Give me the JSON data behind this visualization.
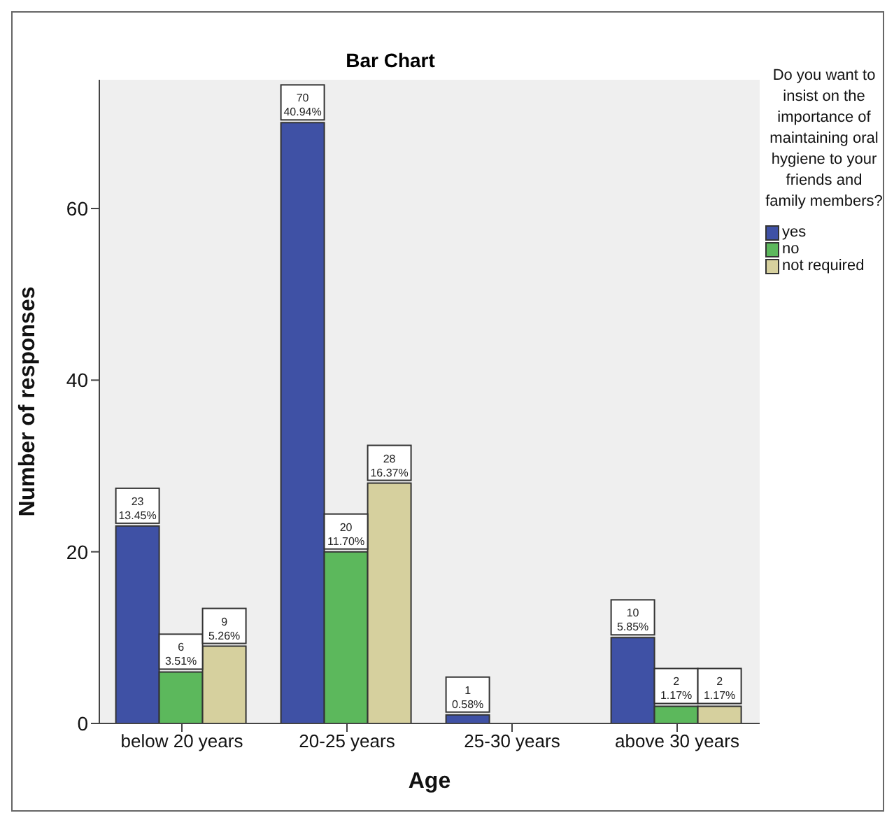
{
  "chart_data": {
    "type": "bar",
    "title": "Bar Chart",
    "xlabel": "Age",
    "ylabel": "Number of responses",
    "legend_title": "Do you want to insist on the importance of maintaining oral hygiene to your friends and family members?",
    "categories": [
      "below 20 years",
      "20-25 years",
      "25-30 years",
      "above 30 years"
    ],
    "series": [
      {
        "name": "yes",
        "color": "#3f51a5",
        "values": [
          23,
          70,
          1,
          10
        ],
        "value_labels": [
          "23\n13.45%",
          "70\n40.94%",
          "1\n0.58%",
          "10\n5.85%"
        ]
      },
      {
        "name": "no",
        "color": "#5cb85c",
        "values": [
          6,
          20,
          null,
          2
        ],
        "value_labels": [
          "6\n3.51%",
          "20\n11.70%",
          null,
          "2\n1.17%"
        ]
      },
      {
        "name": "not required",
        "color": "#d6d09e",
        "values": [
          9,
          28,
          null,
          2
        ],
        "value_labels": [
          "9\n5.26%",
          "28\n16.37%",
          null,
          "2\n1.17%"
        ]
      }
    ],
    "ylim": [
      0,
      75
    ],
    "yticks": [
      0,
      20,
      40,
      60
    ],
    "legend": "right"
  }
}
